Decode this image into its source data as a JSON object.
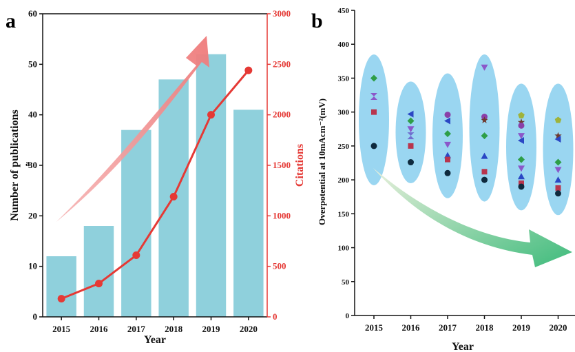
{
  "panels": {
    "a": "a",
    "b": "b"
  },
  "chart_data": [
    {
      "panel": "a",
      "type": "bar",
      "categories": [
        "2015",
        "2016",
        "2017",
        "2018",
        "2019",
        "2020"
      ],
      "series": [
        {
          "values": [
            12,
            18,
            37,
            47,
            52,
            41
          ],
          "color": "#8fd0dc"
        },
        {
          "values": [
            180,
            330,
            610,
            1190,
            2000,
            2440
          ],
          "color": "#e53935",
          "type": "line",
          "axis": "right"
        }
      ],
      "xlabel": "Year",
      "ylabel": "Number of publications",
      "ylabel_right": "Citations",
      "stray_label": "a",
      "ylim": [
        0,
        60
      ],
      "ylim_right": [
        0,
        3000
      ],
      "yticks": [
        0,
        10,
        20,
        30,
        40,
        50,
        60
      ],
      "yticks_right": [
        0,
        500,
        1000,
        1500,
        2000,
        2500,
        3000
      ]
    },
    {
      "panel": "b",
      "type": "scatter",
      "categories": [
        "2015",
        "2016",
        "2017",
        "2018",
        "2019",
        "2020"
      ],
      "xlabel": "Year",
      "ylabel": "Overpotential at 10mAcm⁻²(mV)",
      "ylim": [
        0,
        450
      ],
      "yticks": [
        0,
        50,
        100,
        150,
        200,
        250,
        300,
        350,
        400,
        450
      ],
      "points": [
        {
          "x": "2015",
          "y": 350,
          "shape": "diamond",
          "color": "#2e9e47"
        },
        {
          "x": "2015",
          "y": 323,
          "shape": "hourglass",
          "color": "#8b57c9"
        },
        {
          "x": "2015",
          "y": 300,
          "shape": "square",
          "color": "#b8354d"
        },
        {
          "x": "2015",
          "y": 250,
          "shape": "circle",
          "color": "#0e2a3e"
        },
        {
          "x": "2016",
          "y": 297,
          "shape": "triangle-left",
          "color": "#2a47c4"
        },
        {
          "x": "2016",
          "y": 287,
          "shape": "diamond",
          "color": "#2e9e47"
        },
        {
          "x": "2016",
          "y": 275,
          "shape": "triangle-down",
          "color": "#8b57c9"
        },
        {
          "x": "2016",
          "y": 265,
          "shape": "hourglass",
          "color": "#6f6fcf"
        },
        {
          "x": "2016",
          "y": 250,
          "shape": "square",
          "color": "#b8354d"
        },
        {
          "x": "2016",
          "y": 226,
          "shape": "circle",
          "color": "#0e2a3e"
        },
        {
          "x": "2017",
          "y": 296,
          "shape": "circle",
          "color": "#8a3fa8"
        },
        {
          "x": "2017",
          "y": 287,
          "shape": "triangle-left",
          "color": "#2a47c4"
        },
        {
          "x": "2017",
          "y": 268,
          "shape": "diamond",
          "color": "#2e9e47"
        },
        {
          "x": "2017",
          "y": 252,
          "shape": "triangle-down",
          "color": "#8b57c9"
        },
        {
          "x": "2017",
          "y": 236,
          "shape": "triangle-up",
          "color": "#2a47c4"
        },
        {
          "x": "2017",
          "y": 230,
          "shape": "square",
          "color": "#b8354d"
        },
        {
          "x": "2017",
          "y": 210,
          "shape": "circle",
          "color": "#0e2a3e"
        },
        {
          "x": "2018",
          "y": 366,
          "shape": "triangle-down",
          "color": "#8b57c9"
        },
        {
          "x": "2018",
          "y": 293,
          "shape": "circle",
          "color": "#8a3fa8"
        },
        {
          "x": "2018",
          "y": 288,
          "shape": "star",
          "color": "#6f3a2e"
        },
        {
          "x": "2018",
          "y": 265,
          "shape": "diamond",
          "color": "#2e9e47"
        },
        {
          "x": "2018",
          "y": 235,
          "shape": "triangle-up",
          "color": "#2a47c4"
        },
        {
          "x": "2018",
          "y": 212,
          "shape": "square",
          "color": "#b8354d"
        },
        {
          "x": "2018",
          "y": 200,
          "shape": "circle",
          "color": "#0e2a3e"
        },
        {
          "x": "2019",
          "y": 295,
          "shape": "pentagon",
          "color": "#9fb33a"
        },
        {
          "x": "2019",
          "y": 285,
          "shape": "star",
          "color": "#6f3a2e"
        },
        {
          "x": "2019",
          "y": 280,
          "shape": "circle",
          "color": "#8a3fa8"
        },
        {
          "x": "2019",
          "y": 265,
          "shape": "triangle-down",
          "color": "#8b57c9"
        },
        {
          "x": "2019",
          "y": 258,
          "shape": "triangle-left",
          "color": "#2a47c4"
        },
        {
          "x": "2019",
          "y": 230,
          "shape": "diamond",
          "color": "#2e9e47"
        },
        {
          "x": "2019",
          "y": 217,
          "shape": "triangle-down",
          "color": "#8b57c9"
        },
        {
          "x": "2019",
          "y": 205,
          "shape": "triangle-up",
          "color": "#2a47c4"
        },
        {
          "x": "2019",
          "y": 195,
          "shape": "square",
          "color": "#b8354d"
        },
        {
          "x": "2019",
          "y": 190,
          "shape": "circle",
          "color": "#0e2a3e"
        },
        {
          "x": "2020",
          "y": 288,
          "shape": "pentagon",
          "color": "#9fb33a"
        },
        {
          "x": "2020",
          "y": 265,
          "shape": "star",
          "color": "#6f3a2e"
        },
        {
          "x": "2020",
          "y": 260,
          "shape": "triangle-left",
          "color": "#2a47c4"
        },
        {
          "x": "2020",
          "y": 226,
          "shape": "diamond",
          "color": "#2e9e47"
        },
        {
          "x": "2020",
          "y": 215,
          "shape": "triangle-down",
          "color": "#8b57c9"
        },
        {
          "x": "2020",
          "y": 200,
          "shape": "triangle-up",
          "color": "#2a47c4"
        },
        {
          "x": "2020",
          "y": 188,
          "shape": "square",
          "color": "#b8354d"
        },
        {
          "x": "2020",
          "y": 180,
          "shape": "circle",
          "color": "#0e2a3e"
        }
      ],
      "clusters": [
        {
          "x": "2015",
          "ymin": 192,
          "ymax": 385
        },
        {
          "x": "2016",
          "ymin": 195,
          "ymax": 345
        },
        {
          "x": "2017",
          "ymin": 173,
          "ymax": 357
        },
        {
          "x": "2018",
          "ymin": 168,
          "ymax": 385
        },
        {
          "x": "2019",
          "ymin": 155,
          "ymax": 342
        },
        {
          "x": "2020",
          "ymin": 148,
          "ymax": 342
        }
      ]
    }
  ],
  "colors": {
    "bar": "#8fd0dc",
    "citations": "#e53935",
    "ellipse": "#8fd1ef",
    "trend_red": "#f08a8a",
    "trend_green_start": "#d9e8c8",
    "trend_green_end": "#4dbd82"
  }
}
